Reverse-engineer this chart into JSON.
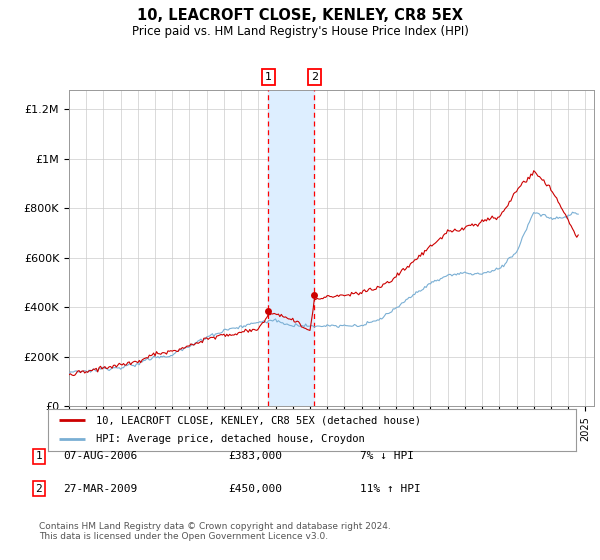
{
  "title": "10, LEACROFT CLOSE, KENLEY, CR8 5EX",
  "subtitle": "Price paid vs. HM Land Registry's House Price Index (HPI)",
  "ylabel_ticks": [
    "£0",
    "£200K",
    "£400K",
    "£600K",
    "£800K",
    "£1M",
    "£1.2M"
  ],
  "ytick_values": [
    0,
    200000,
    400000,
    600000,
    800000,
    1000000,
    1200000
  ],
  "ylim": [
    0,
    1280000
  ],
  "xlim_start": 1995.0,
  "xlim_end": 2025.5,
  "legend_line1": "10, LEACROFT CLOSE, KENLEY, CR8 5EX (detached house)",
  "legend_line2": "HPI: Average price, detached house, Croydon",
  "line1_color": "#cc0000",
  "line2_color": "#7aafd4",
  "transaction1_date": "07-AUG-2006",
  "transaction1_price": "£383,000",
  "transaction1_pct": "7% ↓ HPI",
  "transaction1_x": 2006.58,
  "transaction1_y": 383000,
  "transaction2_date": "27-MAR-2009",
  "transaction2_price": "£450,000",
  "transaction2_pct": "11% ↑ HPI",
  "transaction2_x": 2009.25,
  "transaction2_y": 450000,
  "shade_color": "#ddeeff",
  "footnote": "Contains HM Land Registry data © Crown copyright and database right 2024.\nThis data is licensed under the Open Government Licence v3.0."
}
